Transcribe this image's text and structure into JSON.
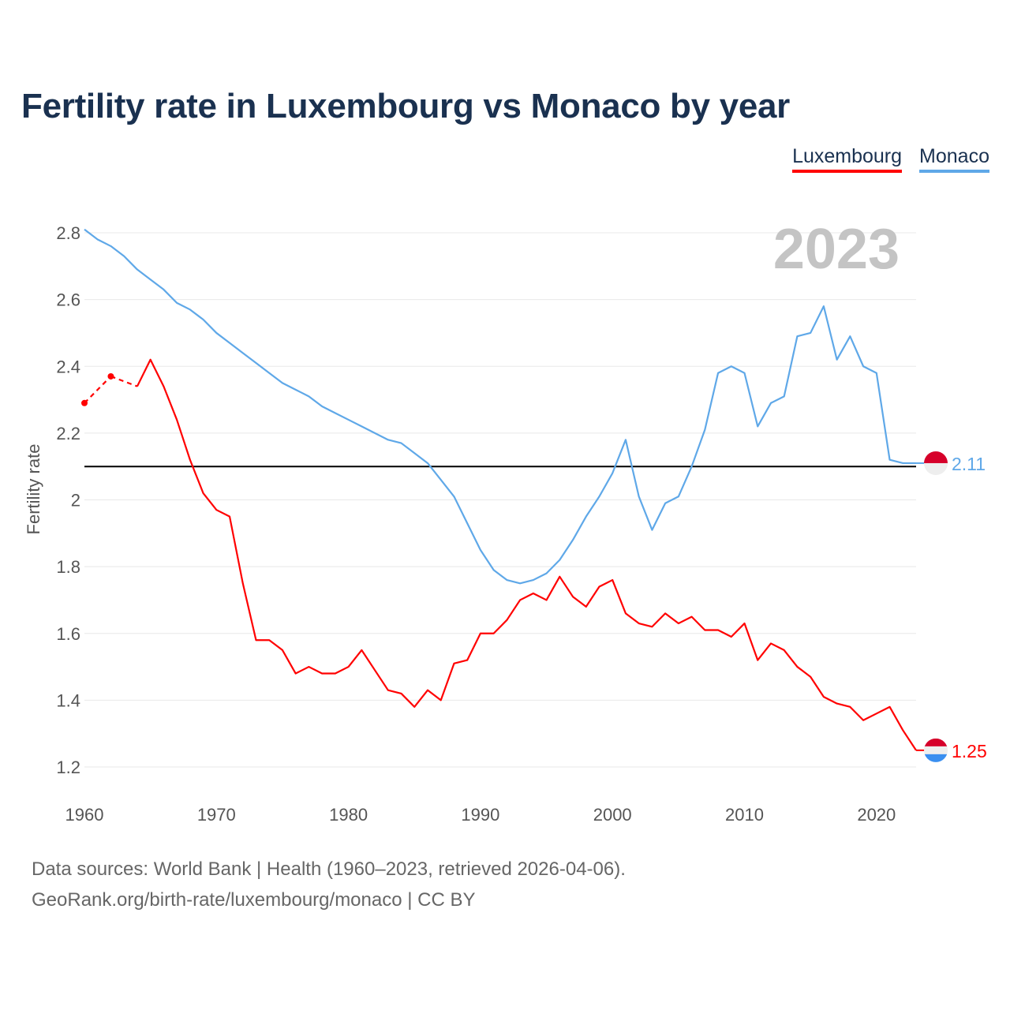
{
  "title": "Fertility rate in Luxembourg vs Monaco by year",
  "footer": {
    "line1": "Data sources: World Bank | Health (1960–2023, retrieved 2026-04-06).",
    "line2": "GeoRank.org/birth-rate/luxembourg/monaco | CC BY"
  },
  "chart_data": {
    "type": "line",
    "title": "Fertility rate in Luxembourg vs Monaco by year",
    "xlabel": "",
    "ylabel": "Fertility rate",
    "year_label": "2023",
    "xlim": [
      1960,
      2023
    ],
    "ylim": [
      1.2,
      2.8
    ],
    "x_ticks": [
      "1960",
      "1970",
      "1980",
      "1990",
      "2000",
      "2010",
      "2020"
    ],
    "y_ticks": [
      "1.2",
      "1.4",
      "1.6",
      "1.8",
      "2",
      "2.2",
      "2.4",
      "2.6",
      "2.8"
    ],
    "reference_line": 2.1,
    "grid": true,
    "legend_position": "top-right",
    "x": [
      1960,
      1961,
      1962,
      1963,
      1964,
      1965,
      1966,
      1967,
      1968,
      1969,
      1970,
      1971,
      1972,
      1973,
      1974,
      1975,
      1976,
      1977,
      1978,
      1979,
      1980,
      1981,
      1982,
      1983,
      1984,
      1985,
      1986,
      1987,
      1988,
      1989,
      1990,
      1991,
      1992,
      1993,
      1994,
      1995,
      1996,
      1997,
      1998,
      1999,
      2000,
      2001,
      2002,
      2003,
      2004,
      2005,
      2006,
      2007,
      2008,
      2009,
      2010,
      2011,
      2012,
      2013,
      2014,
      2015,
      2016,
      2017,
      2018,
      2019,
      2020,
      2021,
      2022,
      2023
    ],
    "series": [
      {
        "name": "Luxembourg",
        "color": "#ff0000",
        "end_label": "1.25",
        "values": [
          2.29,
          null,
          2.37,
          null,
          2.34,
          2.42,
          2.34,
          2.24,
          2.12,
          2.02,
          1.97,
          1.95,
          1.75,
          1.58,
          1.58,
          1.55,
          1.48,
          1.5,
          1.48,
          1.48,
          1.5,
          1.55,
          1.49,
          1.43,
          1.42,
          1.38,
          1.43,
          1.4,
          1.51,
          1.52,
          1.6,
          1.6,
          1.64,
          1.7,
          1.72,
          1.7,
          1.77,
          1.71,
          1.68,
          1.74,
          1.76,
          1.66,
          1.63,
          1.62,
          1.66,
          1.63,
          1.65,
          1.61,
          1.61,
          1.59,
          1.63,
          1.52,
          1.57,
          1.55,
          1.5,
          1.47,
          1.41,
          1.39,
          1.38,
          1.34,
          1.36,
          1.38,
          1.31,
          1.25
        ]
      },
      {
        "name": "Monaco",
        "color": "#5fa8e8",
        "end_label": "2.11",
        "values": [
          2.81,
          2.78,
          2.76,
          2.73,
          2.69,
          2.66,
          2.63,
          2.59,
          2.57,
          2.54,
          2.5,
          2.47,
          2.44,
          2.41,
          2.38,
          2.35,
          2.33,
          2.31,
          2.28,
          2.26,
          2.24,
          2.22,
          2.2,
          2.18,
          2.17,
          2.14,
          2.11,
          2.06,
          2.01,
          1.93,
          1.85,
          1.79,
          1.76,
          1.75,
          1.76,
          1.78,
          1.82,
          1.88,
          1.95,
          2.01,
          2.08,
          2.18,
          2.01,
          1.91,
          1.99,
          2.01,
          2.1,
          2.21,
          2.38,
          2.4,
          2.38,
          2.22,
          2.29,
          2.31,
          2.49,
          2.5,
          2.58,
          2.42,
          2.49,
          2.4,
          2.38,
          2.12,
          2.11,
          2.11
        ]
      }
    ]
  }
}
